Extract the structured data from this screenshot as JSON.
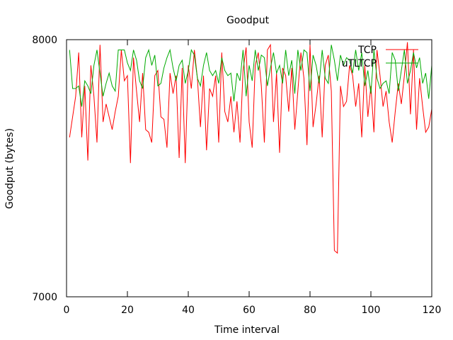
{
  "chart_data": {
    "type": "line",
    "title": "Goodput",
    "xlabel": "Time interval",
    "ylabel": "Goodput (bytes)",
    "xlim": [
      0,
      120
    ],
    "ylim": [
      7000,
      8000
    ],
    "xticks": [
      0,
      20,
      40,
      60,
      80,
      100,
      120
    ],
    "yticks": [
      7000,
      8000
    ],
    "x_tick_labels": [
      "0",
      "20",
      "40",
      "60",
      "80",
      "100",
      "120"
    ],
    "y_tick_labels": [
      "7000",
      "8000"
    ],
    "grid": false,
    "legend_position": "top-right",
    "series": [
      {
        "name": "TCP",
        "color": "#ff0000",
        "x": [
          1,
          2,
          3,
          4,
          5,
          6,
          7,
          8,
          9,
          10,
          11,
          12,
          13,
          14,
          15,
          16,
          17,
          18,
          19,
          20,
          21,
          22,
          23,
          24,
          25,
          26,
          27,
          28,
          29,
          30,
          31,
          32,
          33,
          34,
          35,
          36,
          37,
          38,
          39,
          40,
          41,
          42,
          43,
          44,
          45,
          46,
          47,
          48,
          49,
          50,
          51,
          52,
          53,
          54,
          55,
          56,
          57,
          58,
          59,
          60,
          61,
          62,
          63,
          64,
          65,
          66,
          67,
          68,
          69,
          70,
          71,
          72,
          73,
          74,
          75,
          76,
          77,
          78,
          79,
          80,
          81,
          82,
          83,
          84,
          85,
          86,
          87,
          88,
          89,
          90,
          91,
          92,
          93,
          94,
          95,
          96,
          97,
          98,
          99,
          100,
          101,
          102,
          103,
          104,
          105,
          106,
          107,
          108,
          109,
          110,
          111,
          112,
          113,
          114,
          115,
          116,
          117,
          118,
          119,
          120
        ],
        "y": [
          7620,
          7700,
          7780,
          7950,
          7620,
          7820,
          7530,
          7900,
          7780,
          7600,
          7980,
          7680,
          7750,
          7700,
          7650,
          7720,
          7780,
          7960,
          7840,
          7860,
          7520,
          7930,
          7800,
          7680,
          7870,
          7650,
          7640,
          7600,
          7860,
          7880,
          7700,
          7690,
          7580,
          7870,
          7790,
          7860,
          7540,
          7890,
          7520,
          7900,
          7810,
          7960,
          7850,
          7660,
          7860,
          7570,
          7810,
          7780,
          7860,
          7600,
          7950,
          7720,
          7680,
          7780,
          7640,
          7760,
          7600,
          7880,
          7970,
          7680,
          7580,
          7900,
          7950,
          7820,
          7600,
          7960,
          7980,
          7680,
          7870,
          7560,
          7890,
          7860,
          7720,
          7890,
          7650,
          7800,
          7950,
          7850,
          7590,
          7980,
          7660,
          7750,
          7860,
          7620,
          7900,
          7940,
          7800,
          7180,
          7170,
          7820,
          7740,
          7760,
          7900,
          7860,
          7740,
          7830,
          7620,
          7900,
          7700,
          7820,
          7640,
          7960,
          7860,
          7740,
          7800,
          7680,
          7600,
          7720,
          7830,
          7750,
          7860,
          7990,
          7710,
          7960,
          7650,
          7850,
          7740,
          7640,
          7660,
          7730
        ]
      },
      {
        "name": "uTLTCP",
        "color": "#00aa00",
        "x": [
          1,
          2,
          3,
          4,
          5,
          6,
          7,
          8,
          9,
          10,
          11,
          12,
          13,
          14,
          15,
          16,
          17,
          18,
          19,
          20,
          21,
          22,
          23,
          24,
          25,
          26,
          27,
          28,
          29,
          30,
          31,
          32,
          33,
          34,
          35,
          36,
          37,
          38,
          39,
          40,
          41,
          42,
          43,
          44,
          45,
          46,
          47,
          48,
          49,
          50,
          51,
          52,
          53,
          54,
          55,
          56,
          57,
          58,
          59,
          60,
          61,
          62,
          63,
          64,
          65,
          66,
          67,
          68,
          69,
          70,
          71,
          72,
          73,
          74,
          75,
          76,
          77,
          78,
          79,
          80,
          81,
          82,
          83,
          84,
          85,
          86,
          87,
          88,
          89,
          90,
          91,
          92,
          93,
          94,
          95,
          96,
          97,
          98,
          99,
          100,
          101,
          102,
          103,
          104,
          105,
          106,
          107,
          108,
          109,
          110,
          111,
          112,
          113,
          114,
          115,
          116,
          117,
          118,
          119,
          120
        ],
        "y": [
          7960,
          7810,
          7810,
          7820,
          7740,
          7840,
          7820,
          7790,
          7900,
          7960,
          7870,
          7780,
          7830,
          7870,
          7820,
          7800,
          7960,
          7960,
          7960,
          7910,
          7880,
          7960,
          7920,
          7840,
          7810,
          7930,
          7960,
          7900,
          7940,
          7820,
          7830,
          7890,
          7930,
          7960,
          7890,
          7840,
          7900,
          7920,
          7830,
          7880,
          7960,
          7940,
          7850,
          7820,
          7900,
          7950,
          7880,
          7860,
          7880,
          7830,
          7930,
          7880,
          7860,
          7870,
          7760,
          7870,
          7840,
          7960,
          7780,
          7900,
          7840,
          7960,
          7880,
          7940,
          7930,
          7820,
          7890,
          7950,
          7870,
          7900,
          7830,
          7960,
          7860,
          7920,
          7790,
          7960,
          7880,
          7960,
          7950,
          7800,
          7940,
          7900,
          7830,
          7960,
          7850,
          7830,
          7980,
          7920,
          7840,
          7940,
          7900,
          7930,
          7920,
          7870,
          7960,
          7880,
          7950,
          7820,
          7880,
          7790,
          7960,
          7850,
          7810,
          7830,
          7840,
          7790,
          7950,
          7920,
          7800,
          7880,
          7960,
          7830,
          7880,
          7950,
          7890,
          7930,
          7830,
          7870,
          7770,
          7900
        ]
      }
    ]
  }
}
